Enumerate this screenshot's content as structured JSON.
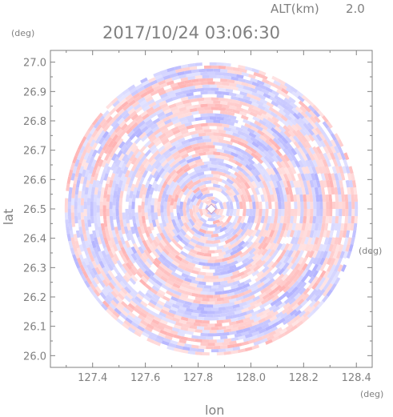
{
  "header": {
    "altitude_label": "ALT(km)",
    "altitude_value": "2.0",
    "timestamp": "2017/10/24 03:06:30"
  },
  "chart_data": {
    "type": "heatmap",
    "title": "2017/10/24 03:06:30",
    "xlabel": "lon",
    "ylabel": "lat",
    "x_unit": "(deg)",
    "y_unit": "(deg)",
    "xlim": [
      127.24,
      128.46
    ],
    "ylim": [
      25.96,
      27.04
    ],
    "x_ticks": [
      127.4,
      127.6,
      127.8,
      128.0,
      128.2,
      128.4
    ],
    "x_tick_labels": [
      "127.4",
      "127.6",
      "127.8",
      "128.0",
      "128.2",
      "128.4"
    ],
    "y_ticks": [
      26.0,
      26.1,
      26.2,
      26.3,
      26.4,
      26.5,
      26.6,
      26.7,
      26.8,
      26.9,
      27.0
    ],
    "y_tick_labels": [
      "26.0",
      "26.1",
      "26.2",
      "26.3",
      "26.4",
      "26.5",
      "26.6",
      "26.7",
      "26.8",
      "26.9",
      "27.0"
    ],
    "center": {
      "lon": 127.85,
      "lat": 26.5
    },
    "radius_deg_lat": 0.5,
    "colors": {
      "positive": "#ffb4b4",
      "negative": "#b4b4ff",
      "axis": "#808080"
    }
  }
}
